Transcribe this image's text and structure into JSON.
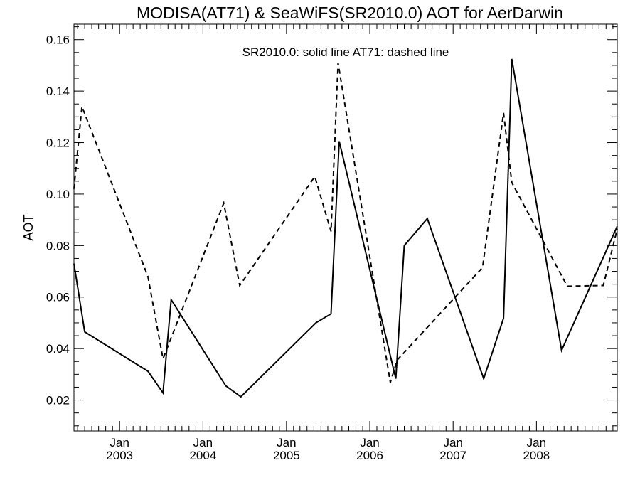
{
  "chart_data": {
    "type": "line",
    "title": "MODISA(AT71) & SeaWiFS(SR2010.0)  AOT for AerDarwin",
    "ylabel": "AOT",
    "xlabel": "",
    "legend_text": "SR2010.0: solid line   AT71: dashed line",
    "xlim": [
      "2002-06-15",
      "2008-12-20"
    ],
    "ylim": [
      0.008,
      0.166
    ],
    "y_ticks": [
      {
        "value": 0.02,
        "label": "0.02"
      },
      {
        "value": 0.04,
        "label": "0.04"
      },
      {
        "value": 0.06,
        "label": "0.06"
      },
      {
        "value": 0.08,
        "label": "0.08"
      },
      {
        "value": 0.1,
        "label": "0.10"
      },
      {
        "value": 0.12,
        "label": "0.12"
      },
      {
        "value": 0.14,
        "label": "0.14"
      },
      {
        "value": 0.16,
        "label": "0.16"
      }
    ],
    "x_ticks": [
      {
        "date": "2003-01-01",
        "month": "Jan",
        "year": "2003"
      },
      {
        "date": "2004-01-01",
        "month": "Jan",
        "year": "2004"
      },
      {
        "date": "2005-01-01",
        "month": "Jan",
        "year": "2005"
      },
      {
        "date": "2006-01-01",
        "month": "Jan",
        "year": "2006"
      },
      {
        "date": "2007-01-01",
        "month": "Jan",
        "year": "2007"
      },
      {
        "date": "2008-01-01",
        "month": "Jan",
        "year": "2008"
      }
    ],
    "series": [
      {
        "name": "SR2010.0",
        "style": "solid",
        "color": "#000000",
        "points": [
          {
            "x": "2002-06-15",
            "y": 0.073
          },
          {
            "x": "2002-08-01",
            "y": 0.0465
          },
          {
            "x": "2003-05-05",
            "y": 0.0312
          },
          {
            "x": "2003-07-10",
            "y": 0.0228
          },
          {
            "x": "2003-08-15",
            "y": 0.059
          },
          {
            "x": "2004-04-10",
            "y": 0.0255
          },
          {
            "x": "2004-06-15",
            "y": 0.0213
          },
          {
            "x": "2005-05-10",
            "y": 0.05
          },
          {
            "x": "2005-07-15",
            "y": 0.0535
          },
          {
            "x": "2005-08-20",
            "y": 0.1205
          },
          {
            "x": "2006-04-25",
            "y": 0.0283
          },
          {
            "x": "2006-06-01",
            "y": 0.08
          },
          {
            "x": "2006-09-10",
            "y": 0.0905
          },
          {
            "x": "2007-05-15",
            "y": 0.0283
          },
          {
            "x": "2007-08-10",
            "y": 0.0518
          },
          {
            "x": "2007-09-15",
            "y": 0.1525
          },
          {
            "x": "2008-04-20",
            "y": 0.0393
          },
          {
            "x": "2008-12-20",
            "y": 0.0875
          }
        ]
      },
      {
        "name": "AT71",
        "style": "dashed",
        "color": "#000000",
        "points": [
          {
            "x": "2002-06-15",
            "y": 0.102
          },
          {
            "x": "2002-07-20",
            "y": 0.134
          },
          {
            "x": "2003-05-05",
            "y": 0.068
          },
          {
            "x": "2003-07-10",
            "y": 0.036
          },
          {
            "x": "2004-04-01",
            "y": 0.0965
          },
          {
            "x": "2004-06-10",
            "y": 0.0645
          },
          {
            "x": "2005-05-05",
            "y": 0.1068
          },
          {
            "x": "2005-07-15",
            "y": 0.0855
          },
          {
            "x": "2005-08-15",
            "y": 0.151
          },
          {
            "x": "2006-04-01",
            "y": 0.0268
          },
          {
            "x": "2006-05-01",
            "y": 0.0355
          },
          {
            "x": "2007-05-10",
            "y": 0.0715
          },
          {
            "x": "2007-08-10",
            "y": 0.1315
          },
          {
            "x": "2007-09-15",
            "y": 0.1045
          },
          {
            "x": "2008-05-15",
            "y": 0.0642
          },
          {
            "x": "2008-10-20",
            "y": 0.0645
          },
          {
            "x": "2008-12-20",
            "y": 0.0865
          }
        ]
      }
    ],
    "grid": false,
    "legend_position": "top-center"
  }
}
